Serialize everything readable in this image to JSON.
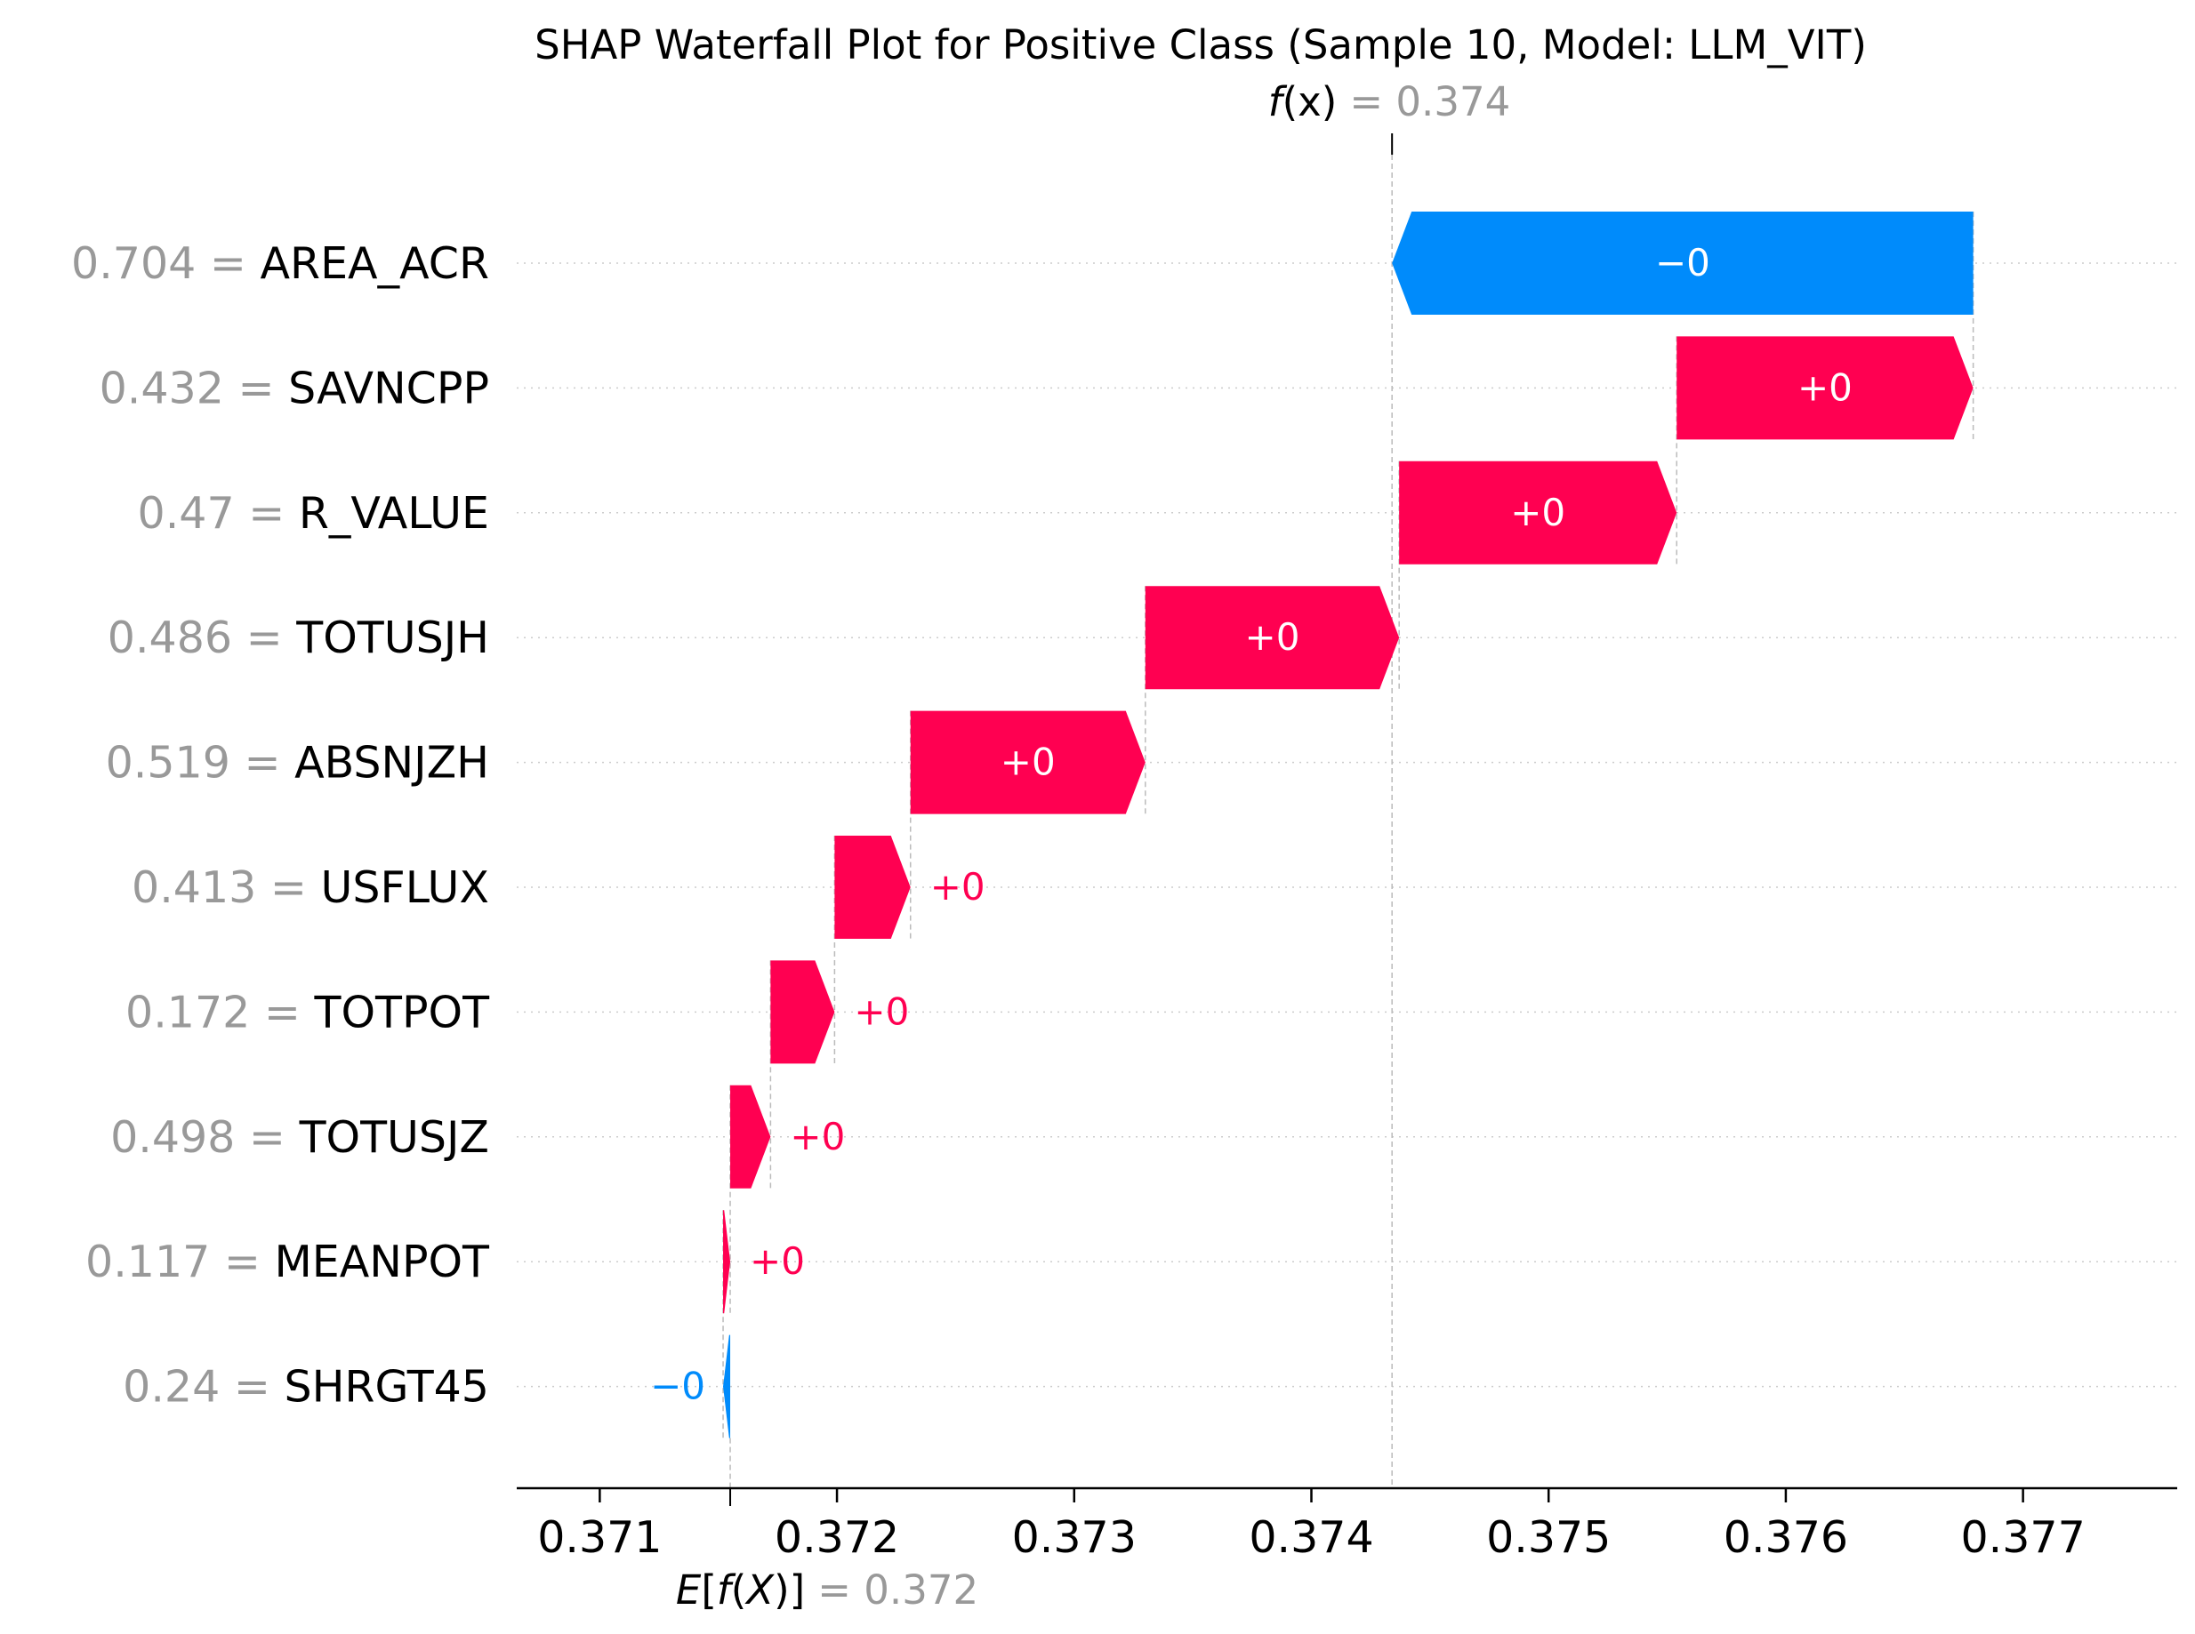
{
  "chart_data": {
    "type": "waterfall",
    "title": "SHAP Waterfall Plot for Positive Class (Sample 10, Model: LLM_VIT)",
    "fx": {
      "label_f": "f",
      "label_x": "(x)",
      "eq": "= 0.374",
      "value": 0.37434
    },
    "efx": {
      "label_E": "E",
      "label_f": "f",
      "label_X": "X",
      "eq": "= 0.372",
      "value": 0.37155
    },
    "x_ticks": [
      0.371,
      0.372,
      0.373,
      0.374,
      0.375,
      0.376,
      0.377
    ],
    "x_tick_labels": [
      "0.371",
      "0.372",
      "0.373",
      "0.374",
      "0.375",
      "0.376",
      "0.377"
    ],
    "xlim": [
      0.37065,
      0.37765
    ],
    "grid": "horizontal dotted",
    "colors": {
      "positive": "#ff0051",
      "negative": "#008bfb",
      "gray": "#999999",
      "text": "#000000"
    },
    "features": [
      {
        "value_label": "0.704",
        "name": "AREA_ACR",
        "start": 0.37679,
        "end": 0.37434,
        "label": "−0"
      },
      {
        "value_label": "0.432",
        "name": "SAVNCPP",
        "start": 0.37554,
        "end": 0.37679,
        "label": "+0"
      },
      {
        "value_label": "0.47",
        "name": "R_VALUE",
        "start": 0.37437,
        "end": 0.37554,
        "label": "+0"
      },
      {
        "value_label": "0.486",
        "name": "TOTUSJH",
        "start": 0.3733,
        "end": 0.37437,
        "label": "+0"
      },
      {
        "value_label": "0.519",
        "name": "ABSNJZH",
        "start": 0.37231,
        "end": 0.3733,
        "label": "+0"
      },
      {
        "value_label": "0.413",
        "name": "USFLUX",
        "start": 0.37199,
        "end": 0.37231,
        "label": "+0"
      },
      {
        "value_label": "0.172",
        "name": "TOTPOT",
        "start": 0.37172,
        "end": 0.37199,
        "label": "+0"
      },
      {
        "value_label": "0.498",
        "name": "TOTUSJZ",
        "start": 0.37155,
        "end": 0.37172,
        "label": "+0"
      },
      {
        "value_label": "0.117",
        "name": "MEANPOT",
        "start": 0.37152,
        "end": 0.37155,
        "label": "+0"
      },
      {
        "value_label": "0.24",
        "name": "SHRGT45",
        "start": 0.37155,
        "end": 0.37152,
        "label": "−0"
      }
    ]
  }
}
